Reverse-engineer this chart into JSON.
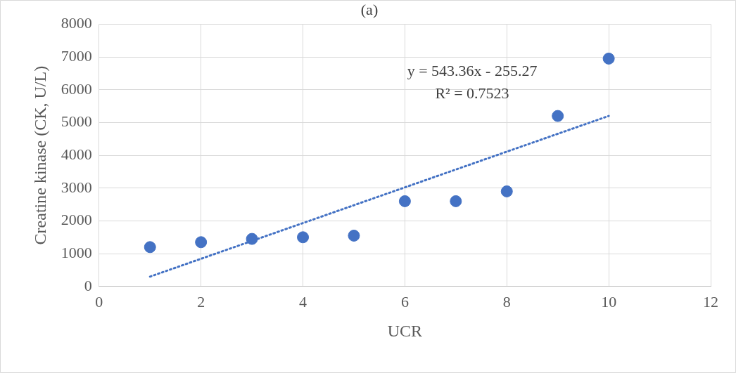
{
  "chart_data": {
    "type": "scatter",
    "title": "(a)",
    "xlabel": "UCR",
    "ylabel": "Creatine kinase (CK, U/L)",
    "x": [
      1,
      2,
      3,
      4,
      5,
      6,
      7,
      8,
      9,
      10
    ],
    "series": [
      {
        "type": "scatter",
        "color": "#4472c4",
        "marker": "circle",
        "values": [
          1200,
          1350,
          1450,
          1500,
          1550,
          2600,
          2600,
          2900,
          5200,
          6950
        ]
      },
      {
        "type": "line",
        "color": "#4472c4",
        "line_style": "dotted",
        "marker": "none",
        "x": [
          1,
          10
        ],
        "values": [
          300,
          5200
        ]
      }
    ],
    "xlim": [
      0,
      12
    ],
    "xticks": [
      0,
      2,
      4,
      6,
      8,
      10,
      12
    ],
    "ylim": [
      0,
      8000
    ],
    "yticks": [
      0,
      1000,
      2000,
      3000,
      4000,
      5000,
      6000,
      7000,
      8000
    ],
    "grid": true,
    "legend": false,
    "annotations": [
      "y = 543.36x - 255.27",
      "R² = 0.7523"
    ]
  }
}
